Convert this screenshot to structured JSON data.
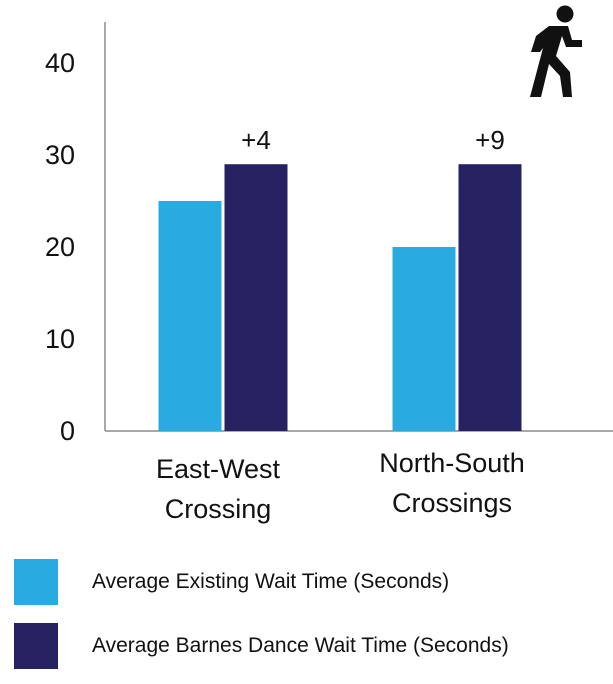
{
  "chart_data": {
    "type": "bar",
    "title": "",
    "xlabel": "",
    "ylabel": "",
    "ylim": [
      0,
      43
    ],
    "yticks": [
      0,
      10,
      20,
      30,
      40
    ],
    "grid": false,
    "legend_position": "bottom",
    "categories": [
      [
        "East-West",
        "Crossing"
      ],
      [
        "North-South",
        "Crossings"
      ]
    ],
    "series": [
      {
        "name": "Average Existing Wait Time (Seconds)",
        "values": [
          25,
          20
        ],
        "color": "#29abe2"
      },
      {
        "name": "Average Barnes Dance Wait Time (Seconds)",
        "values": [
          29,
          29
        ],
        "color": "#262261"
      }
    ],
    "annotations": [
      "+4",
      "+9"
    ],
    "icon": "pedestrian-walking-icon"
  }
}
